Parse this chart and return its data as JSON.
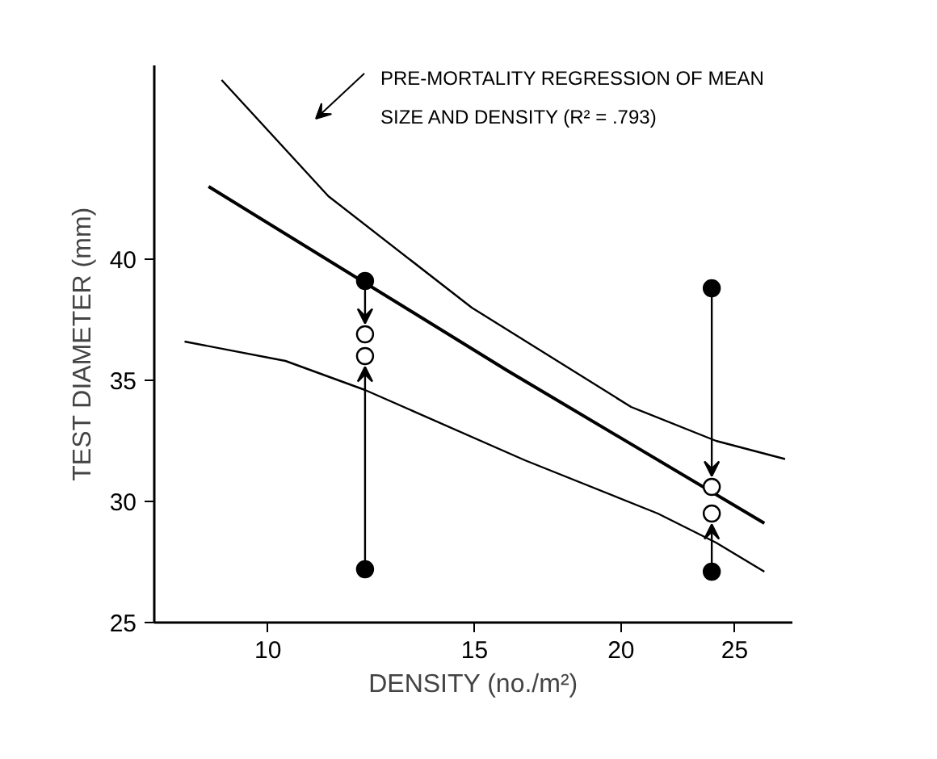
{
  "chart_data": {
    "type": "line",
    "xlabel": "DENSITY (no./m²)",
    "ylabel": "TEST DIAMETER (mm)",
    "log": "x",
    "xlim": [
      8,
      28
    ],
    "xticks": [
      10,
      15,
      20,
      25
    ],
    "ylim": [
      25,
      48
    ],
    "yticks": [
      25,
      30,
      35,
      40
    ],
    "grid": false,
    "annotations": [
      "PRE-MORTALITY REGRESSION OF MEAN SIZE AND DENSITY (R² = .793)"
    ],
    "series": [
      {
        "color": "#000000",
        "x": [
          8.9,
          16,
          26.5
        ],
        "values": [
          43.0,
          35.4,
          29.1
        ]
      },
      {
        "color": "#000000",
        "x": [
          9.13,
          11.26,
          14.92,
          20.4,
          24.1,
          27.6
        ],
        "values": [
          47.4,
          42.6,
          38.0,
          33.9,
          32.5,
          31.75
        ]
      },
      {
        "color": "#000000",
        "x": [
          8.49,
          10.35,
          12.1,
          16.56,
          21.5,
          24.1,
          26.5
        ],
        "values": [
          36.6,
          35.8,
          34.6,
          31.7,
          29.5,
          28.3,
          27.1
        ]
      },
      {
        "type": "scatter",
        "marker": "circle",
        "color": "#000000",
        "x": [
          12.1,
          12.1,
          23.9,
          23.9
        ],
        "values": [
          39.1,
          27.2,
          38.8,
          27.1
        ]
      },
      {
        "type": "scatter",
        "marker": "circle",
        "color": "#ffffff",
        "x": [
          12.1,
          12.1,
          23.9,
          23.9
        ],
        "values": [
          36.9,
          36.0,
          30.6,
          29.5
        ]
      }
    ]
  }
}
